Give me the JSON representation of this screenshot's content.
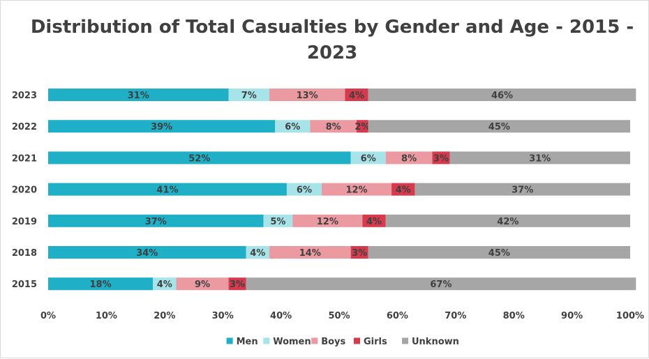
{
  "chart_data": {
    "type": "bar",
    "orientation": "horizontal",
    "stacked": true,
    "title": "Distribution of Total Casualties by Gender and Age - 2015 - 2023",
    "title_lines": [
      "Distribution of Total Casualties by Gender and Age - 2015 -",
      "2023"
    ],
    "categories": [
      "2023",
      "2022",
      "2021",
      "2020",
      "2019",
      "2018",
      "2015"
    ],
    "series": [
      {
        "name": "Men",
        "color": "#1fb0c8",
        "values": [
          31,
          39,
          52,
          41,
          37,
          34,
          18
        ]
      },
      {
        "name": "Women",
        "color": "#a6e4ea",
        "values": [
          7,
          6,
          6,
          6,
          5,
          4,
          4
        ]
      },
      {
        "name": "Boys",
        "color": "#eb9aa2",
        "values": [
          13,
          8,
          8,
          12,
          12,
          14,
          9
        ]
      },
      {
        "name": "Girls",
        "color": "#d73a4d",
        "values": [
          4,
          2,
          3,
          4,
          4,
          3,
          3
        ]
      },
      {
        "name": "Unknown",
        "color": "#a6a6a6",
        "values": [
          46,
          45,
          31,
          37,
          42,
          45,
          67
        ]
      }
    ],
    "xlim": [
      0,
      100
    ],
    "x_ticks": [
      "0%",
      "10%",
      "20%",
      "30%",
      "40%",
      "50%",
      "60%",
      "70%",
      "80%",
      "90%",
      "100%"
    ],
    "value_suffix": "%",
    "grid": false,
    "legend": "bottom"
  }
}
